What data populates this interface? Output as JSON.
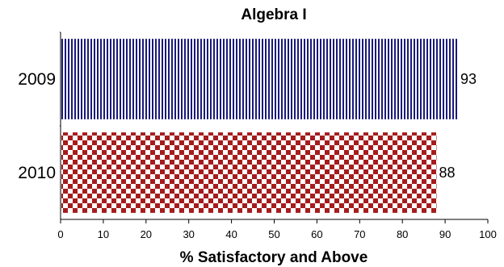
{
  "chart_data": {
    "type": "bar",
    "orientation": "horizontal",
    "title": "Algebra I",
    "xlabel": "% Satisfactory and Above",
    "ylabel": "",
    "categories": [
      "2009",
      "2010"
    ],
    "values": [
      93,
      88
    ],
    "value_labels": [
      "93",
      "88"
    ],
    "xlim": [
      0,
      100
    ],
    "xticks": [
      "0",
      "10",
      "20",
      "30",
      "40",
      "50",
      "60",
      "70",
      "80",
      "90",
      "100"
    ],
    "grid": false,
    "legend": "none",
    "bar_colors": [
      "#1a1a7a",
      "#a51c1c"
    ],
    "bar_patterns": [
      "vertical-stripes",
      "checkerboard"
    ]
  }
}
